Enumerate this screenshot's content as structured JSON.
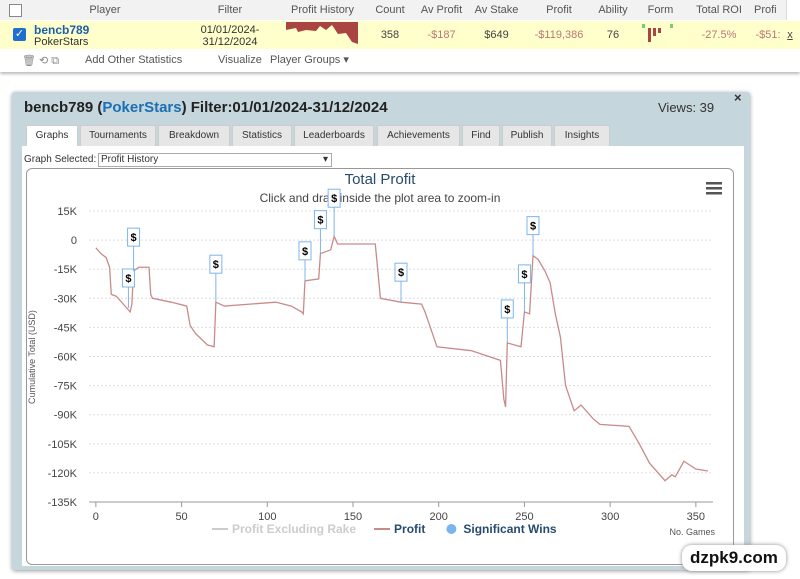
{
  "table": {
    "headers": [
      "Player",
      "Filter",
      "Profit History",
      "Count",
      "Av Profit",
      "Av Stake",
      "Profit",
      "Ability",
      "Form",
      "Total ROI",
      "Profi"
    ],
    "row": {
      "player": "bencb789",
      "site": "PokerStars",
      "filter_from": "01/01/2024-",
      "filter_to": "31/12/2024",
      "count": "358",
      "av_profit": "-$187",
      "av_stake": "$649",
      "profit": "-$119,386",
      "ability": "76",
      "total_roi": "-27.5%",
      "profi": "-$51:",
      "close": "x"
    }
  },
  "toolbar": {
    "add": "Add Other Statistics",
    "visualize": "Visualize",
    "groups": "Player Groups"
  },
  "panel": {
    "player": "bencb789",
    "site": "PokerStars",
    "filter": "Filter:01/01/2024-31/12/2024",
    "views": "Views: 39",
    "close": "×",
    "tabs": [
      "Graphs",
      "Tournaments",
      "Breakdown",
      "Statistics",
      "Leaderboards",
      "Achievements",
      "Find",
      "Publish",
      "Insights"
    ],
    "graph_label": "Graph Selected:",
    "graph_selected": "Profit History"
  },
  "watermark": "dzpk9.com",
  "chart_data": {
    "type": "line",
    "title": "Total Profit",
    "subtitle": "Click and drag inside the plot area to zoom-in",
    "ylabel": "Cumulative Total (USD)",
    "xlabel": "No. Games",
    "grid": true,
    "xlim": [
      -4,
      360
    ],
    "xticks": [
      0,
      50,
      100,
      150,
      200,
      250,
      300,
      350
    ],
    "ylim": [
      -135000,
      15000
    ],
    "yticks": [
      {
        "value": 15000,
        "label": "15K"
      },
      0,
      {
        "value": -15000,
        "label": "-15K"
      },
      {
        "value": -30000,
        "label": "-30K"
      },
      {
        "value": -45000,
        "label": "-45K"
      },
      {
        "value": -60000,
        "label": "-60K"
      },
      {
        "value": -75000,
        "label": "-75K"
      },
      {
        "value": -90000,
        "label": "-90K"
      },
      {
        "value": -105000,
        "label": "-105K"
      },
      {
        "value": -120000,
        "label": "-120K"
      },
      {
        "value": -135000,
        "label": "-135K"
      }
    ],
    "series": [
      {
        "name": "Profit Excluding Rake",
        "color": "#cccccc",
        "visible": false
      },
      {
        "name": "Profit",
        "color": "#c98a8a",
        "visible": true,
        "x": [
          0,
          3,
          6,
          8,
          9,
          12,
          16,
          20,
          21,
          22,
          25,
          31,
          32,
          33,
          44,
          53,
          55,
          58,
          65,
          69,
          70,
          75,
          90,
          105,
          114,
          120,
          121,
          122,
          130,
          131,
          137,
          139,
          141,
          150,
          163,
          166,
          178,
          190,
          192,
          199,
          219,
          236,
          238,
          239,
          240,
          248,
          250,
          253,
          255,
          258,
          262,
          265,
          268,
          271,
          274,
          279,
          283,
          290,
          294,
          311,
          317,
          323,
          332,
          336,
          338,
          343,
          350,
          357
        ],
        "values": [
          -4000,
          -7000,
          -9000,
          -14000,
          -28000,
          -29000,
          -33000,
          -37000,
          -33000,
          -16000,
          -14000,
          -14000,
          -28000,
          -30000,
          -32000,
          -34000,
          -44000,
          -48000,
          -54000,
          -55000,
          -32000,
          -34000,
          -33000,
          -32000,
          -34000,
          -37000,
          -38000,
          -21000,
          -20000,
          -7000,
          -5000,
          2000,
          -2000,
          -2000,
          -2000,
          -30000,
          -32000,
          -33000,
          -37000,
          -55000,
          -57000,
          -62000,
          -82000,
          -86000,
          -53000,
          -55000,
          -37000,
          -38000,
          -8000,
          -10000,
          -16000,
          -22000,
          -38000,
          -50000,
          -75000,
          -88000,
          -85000,
          -92000,
          -95000,
          -96000,
          -105000,
          -115000,
          -124000,
          -121000,
          -122000,
          -114000,
          -118000,
          -119000
        ]
      },
      {
        "name": "Significant Wins",
        "color": "#7cb5ec",
        "visible": true,
        "marker_label": "$",
        "x": [
          19,
          22,
          70,
          122,
          131,
          139,
          178,
          240,
          250,
          255
        ],
        "values": [
          -35000,
          -16000,
          -32000,
          -21000,
          -7000,
          2000,
          -32000,
          -53000,
          -37000,
          -8000
        ]
      }
    ]
  }
}
